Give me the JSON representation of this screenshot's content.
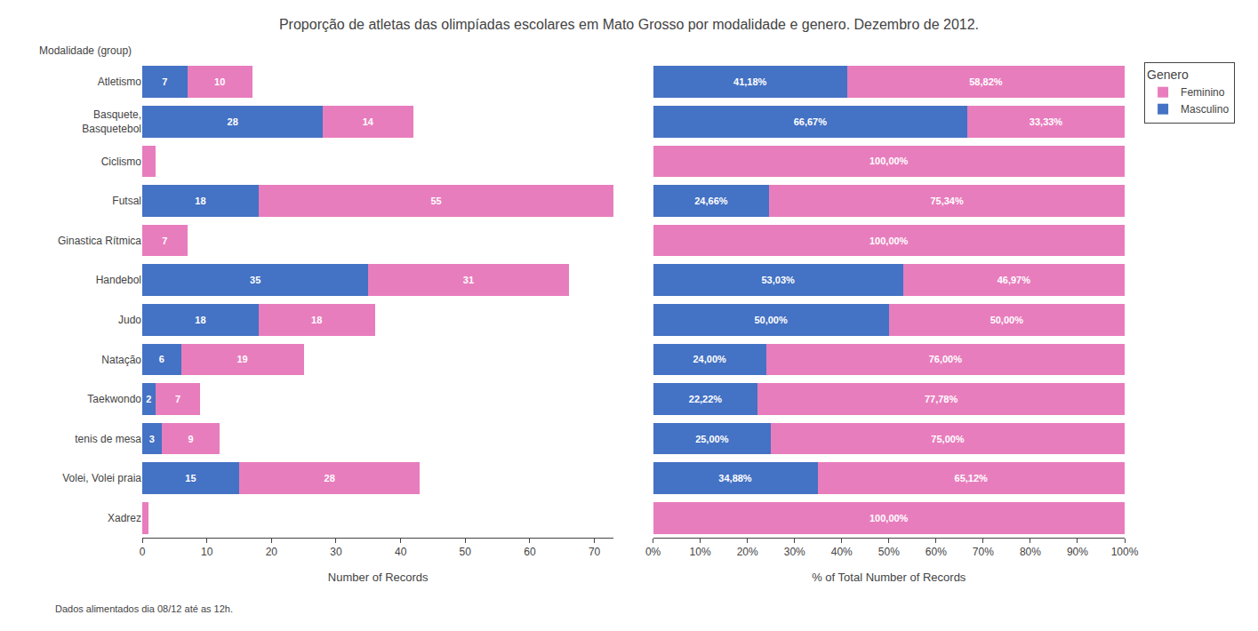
{
  "chart_data": [
    {
      "type": "bar",
      "orientation": "horizontal",
      "stacked": true,
      "title": "Proporção de atletas das olimpíadas escolares em Mato Grosso por modalidade e genero. Dezembro de 2012.",
      "annotations": [
        {
          "text": "Dados alimentados dia 08/12 até as 12h."
        }
      ],
      "ylabel": "Modalidade (group)",
      "xlabel": "Number of Records",
      "categories": [
        "Atletismo",
        "Basquete,\nBasquetebol",
        "Ciclismo",
        "Futsal",
        "Ginastica Rítmica",
        "Handebol",
        "Judo",
        "Natação",
        "Taekwondo",
        "tenis de mesa",
        "Volei, Volei praia",
        "Xadrez"
      ],
      "series": [
        {
          "name": "Masculino",
          "color": "#4472C4",
          "values": [
            7,
            28,
            0,
            18,
            0,
            35,
            18,
            6,
            2,
            3,
            15,
            0
          ],
          "value_labels": [
            "7",
            "28",
            null,
            "18",
            null,
            "35",
            "18",
            "6",
            "2",
            "3",
            "15",
            null
          ]
        },
        {
          "name": "Feminino",
          "color": "#E87DBD",
          "values": [
            10,
            14,
            2,
            55,
            7,
            31,
            18,
            19,
            7,
            9,
            28,
            1
          ],
          "value_labels": [
            "10",
            "14",
            null,
            "55",
            "7",
            "31",
            "18",
            "19",
            "7",
            "9",
            "28",
            null
          ]
        }
      ],
      "xlim": [
        0,
        73
      ],
      "xticks": [
        0,
        10,
        20,
        30,
        40,
        50,
        60,
        70
      ],
      "grid": false,
      "data_labels": true
    },
    {
      "type": "bar",
      "orientation": "horizontal",
      "stacked": true,
      "xlabel": "% of Total Number of Records",
      "categories": [
        "Atletismo",
        "Basquete,\nBasquetebol",
        "Ciclismo",
        "Futsal",
        "Ginastica Rítmica",
        "Handebol",
        "Judo",
        "Natação",
        "Taekwondo",
        "tenis de mesa",
        "Volei, Volei praia",
        "Xadrez"
      ],
      "series": [
        {
          "name": "Masculino",
          "color": "#4472C4",
          "values": [
            41.18,
            66.67,
            0.0,
            24.66,
            0.0,
            53.03,
            50.0,
            24.0,
            22.22,
            25.0,
            34.88,
            0.0
          ],
          "value_labels": [
            "41,18%",
            "66,67%",
            null,
            "24,66%",
            null,
            "53,03%",
            "50,00%",
            "24,00%",
            "22,22%",
            "25,00%",
            "34,88%",
            null
          ]
        },
        {
          "name": "Feminino",
          "color": "#E87DBD",
          "values": [
            58.82,
            33.33,
            100.0,
            75.34,
            100.0,
            46.97,
            50.0,
            76.0,
            77.78,
            75.0,
            65.12,
            100.0
          ],
          "value_labels": [
            "58,82%",
            "33,33%",
            "100,00%",
            "75,34%",
            "100,00%",
            "46,97%",
            "50,00%",
            "76,00%",
            "77,78%",
            "75,00%",
            "65,12%",
            "100,00%"
          ]
        }
      ],
      "xlim": [
        0,
        100
      ],
      "xticks": [
        {
          "value": 0,
          "label": "0%"
        },
        {
          "value": 10,
          "label": "10%"
        },
        {
          "value": 20,
          "label": "20%"
        },
        {
          "value": 30,
          "label": "30%"
        },
        {
          "value": 40,
          "label": "40%"
        },
        {
          "value": 50,
          "label": "50%"
        },
        {
          "value": 60,
          "label": "60%"
        },
        {
          "value": 70,
          "label": "70%"
        },
        {
          "value": 80,
          "label": "80%"
        },
        {
          "value": 90,
          "label": "90%"
        },
        {
          "value": 100,
          "label": "100%"
        }
      ],
      "grid": false,
      "data_labels": true,
      "tick_labels": "x",
      "legend": "right",
      "legend_title": "Genero"
    }
  ]
}
